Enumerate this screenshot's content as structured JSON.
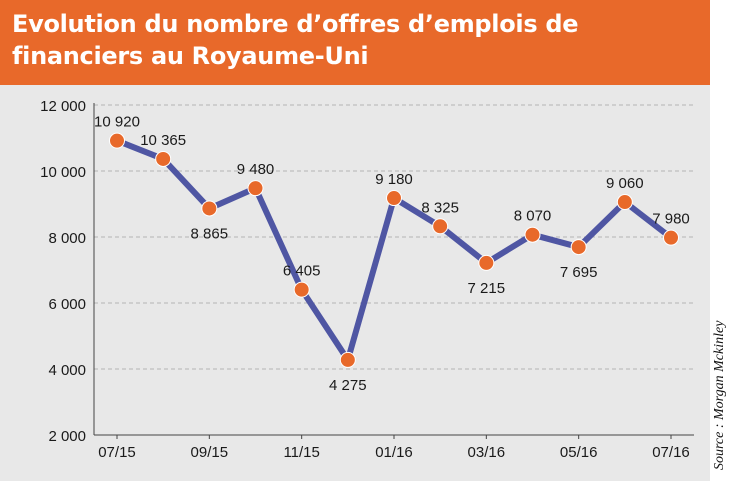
{
  "title": "Evolution du nombre d’offres d’emplois de financiers au Royaume-Uni",
  "source": "Source : Morgan Mckinley",
  "colors": {
    "header": "#e8692a",
    "panel": "#e8e8e8",
    "line": "#4f56a3",
    "marker": "#e8692a",
    "grid": "#b3b3b3",
    "text": "#1a1a1a"
  },
  "chart_data": {
    "type": "line",
    "title": "Evolution du nombre d’offres d’emplois de financiers au Royaume-Uni",
    "xlabel": "",
    "ylabel": "",
    "ylim": [
      2000,
      12000
    ],
    "yticks": [
      2000,
      4000,
      6000,
      8000,
      10000,
      12000
    ],
    "ytick_labels": [
      "2 000",
      "4 000",
      "6 000",
      "8 000",
      "10 000",
      "12 000"
    ],
    "xtick_labels": [
      "07/15",
      "09/15",
      "11/15",
      "01/16",
      "03/16",
      "05/16",
      "07/16"
    ],
    "categories": [
      "07/15",
      "08/15",
      "09/15",
      "10/15",
      "11/15",
      "12/15",
      "01/16",
      "02/16",
      "03/16",
      "04/16",
      "05/16",
      "06/16",
      "07/16"
    ],
    "values": [
      10920,
      10365,
      8865,
      9480,
      6405,
      4275,
      9180,
      8325,
      7215,
      8070,
      7695,
      9060,
      7980
    ],
    "value_labels": [
      "10 920",
      "10 365",
      "8 865",
      "9 480",
      "6 405",
      "4 275",
      "9 180",
      "8 325",
      "7 215",
      "8 070",
      "7 695",
      "9 060",
      "7 980"
    ],
    "label_positions": [
      "above",
      "above",
      "below",
      "above",
      "above",
      "below",
      "above",
      "above",
      "below",
      "above",
      "below",
      "above",
      "above"
    ],
    "grid": true
  }
}
